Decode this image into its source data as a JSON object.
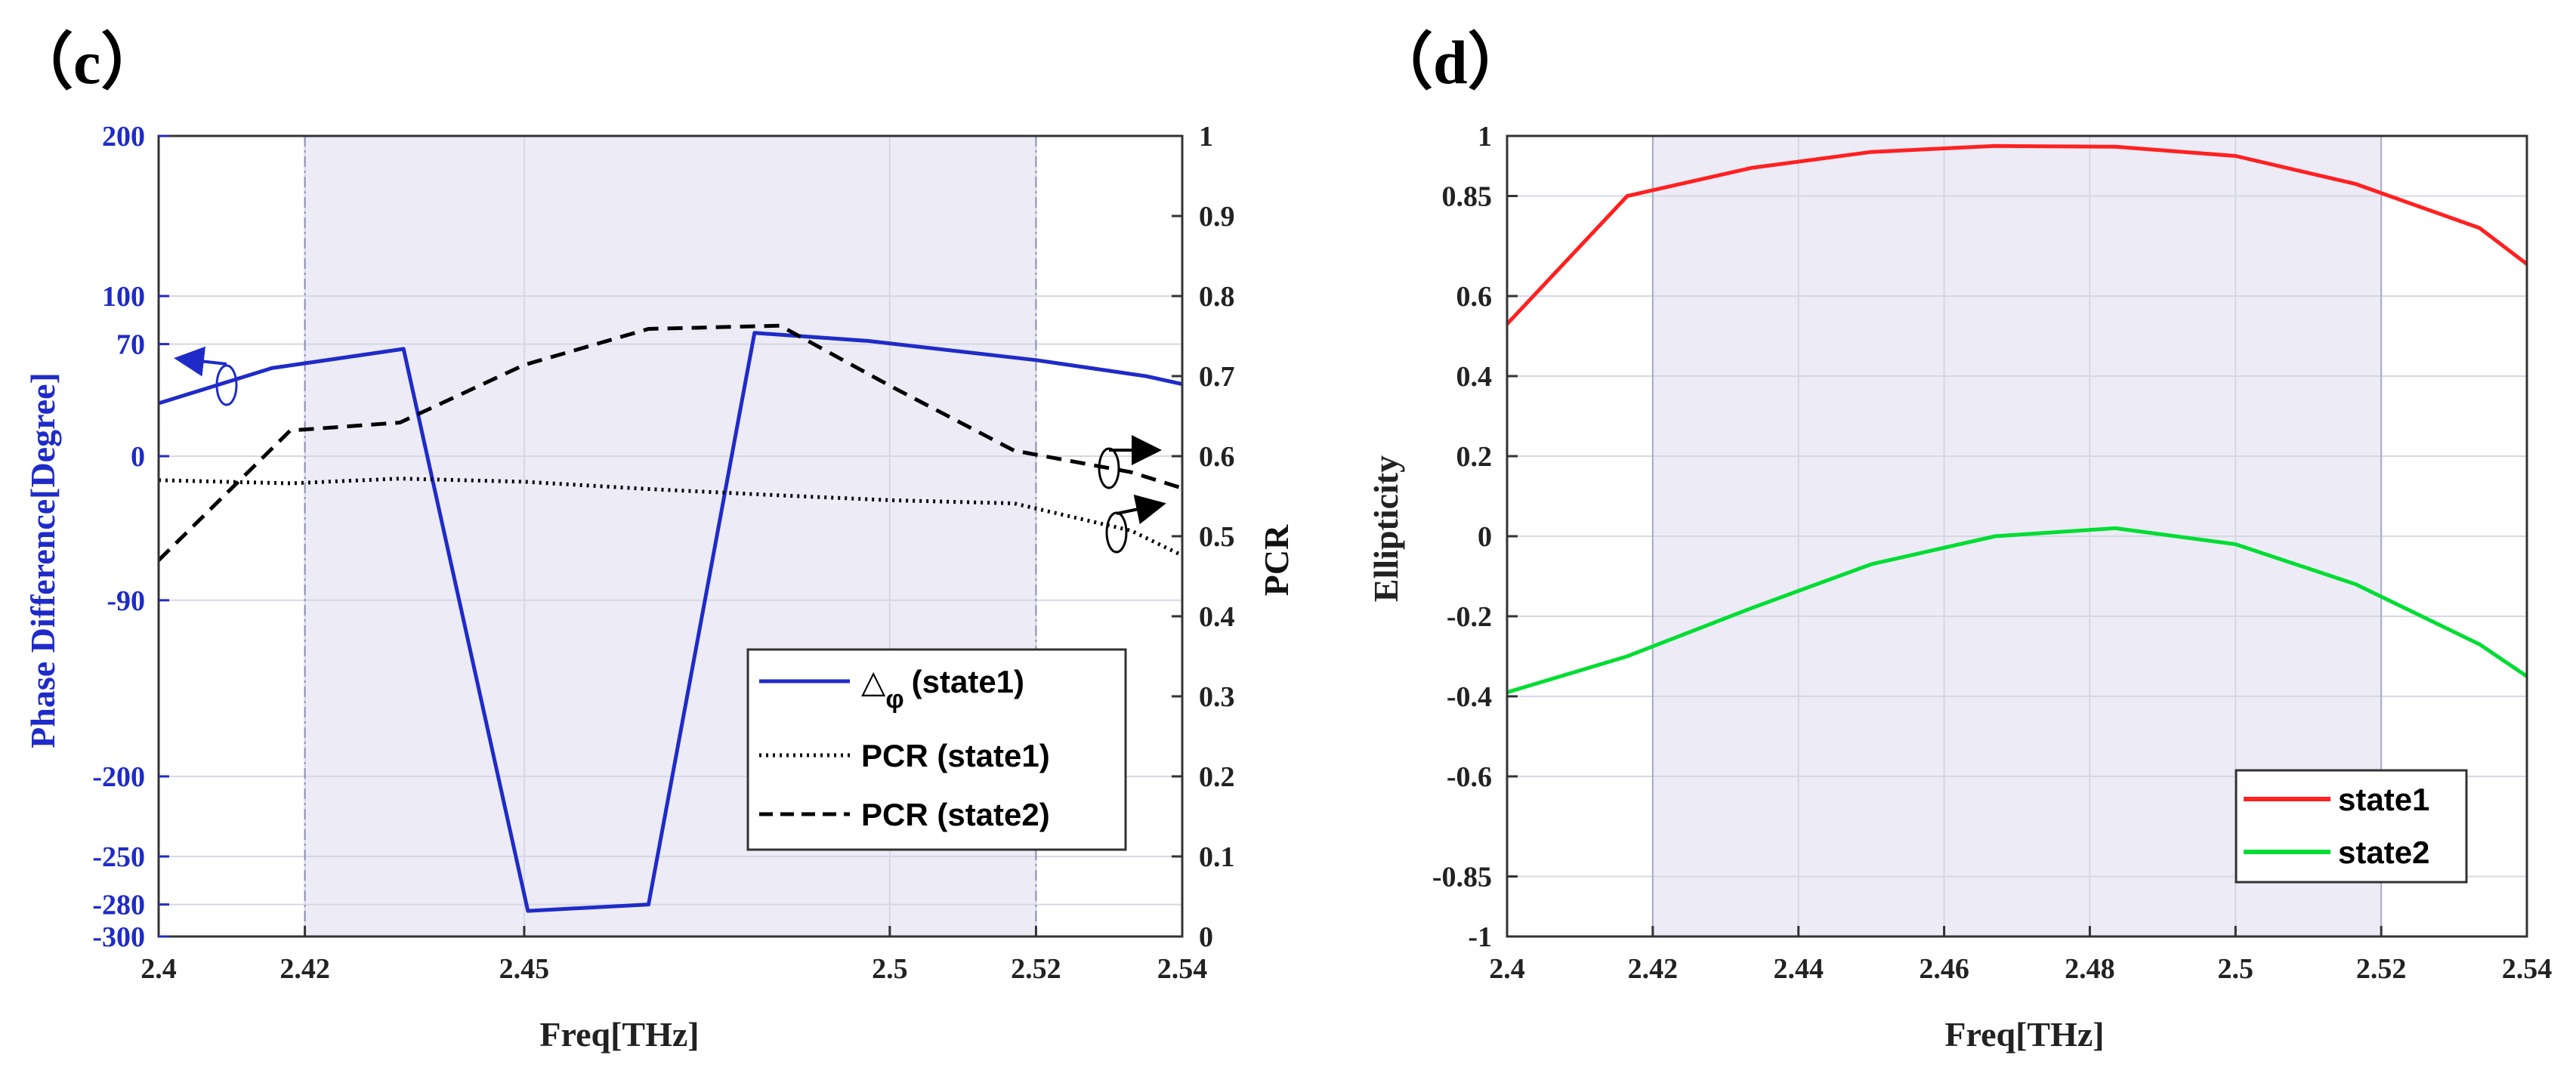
{
  "chart_data": [
    {
      "type": "line",
      "panel_label": "（c）",
      "xlabel": "Freq[THz]",
      "ylabel_left": "Phase Difference[Degree]",
      "ylabel_right": "PCR",
      "xlim": [
        2.4,
        2.54
      ],
      "ylim_left": [
        -300,
        200
      ],
      "ylim_right": [
        0,
        1
      ],
      "xticks": [
        "2.4",
        "2.42",
        "2.45",
        "2.5",
        "2.52",
        "2.54"
      ],
      "xtick_values": [
        2.4,
        2.42,
        2.45,
        2.5,
        2.52,
        2.54
      ],
      "yticks_left": [
        "200",
        "100",
        "70",
        "0",
        "-90",
        "-200",
        "-250",
        "-280",
        "-300"
      ],
      "ytick_values_left": [
        200,
        100,
        70,
        0,
        -90,
        -200,
        -250,
        -280,
        -300
      ],
      "yticks_right": [
        "1",
        "0.9",
        "0.8",
        "0.7",
        "0.6",
        "0.5",
        "0.4",
        "0.3",
        "0.2",
        "0.1",
        "0"
      ],
      "ytick_values_right": [
        1,
        0.9,
        0.8,
        0.7,
        0.6,
        0.5,
        0.4,
        0.3,
        0.2,
        0.1,
        0
      ],
      "shaded_range": [
        2.42,
        2.52
      ],
      "grid": true,
      "legend_position": "bottom-right",
      "series": [
        {
          "name": "(state1)",
          "legend_symbol": "△",
          "legend_subscript": "φ",
          "axis": "left",
          "color": "#1f2bc8",
          "dash": "solid",
          "x": [
            2.4,
            2.4155,
            2.4335,
            2.4505,
            2.467,
            2.4815,
            2.497,
            2.52,
            2.535,
            2.54
          ],
          "y": [
            33,
            55,
            67,
            -284,
            -280,
            77,
            72,
            60,
            50,
            45
          ]
        },
        {
          "name": "PCR (state1)",
          "axis": "right",
          "color": "#000000",
          "dash": "dotted",
          "x": [
            2.4,
            2.418,
            2.433,
            2.45,
            2.467,
            2.485,
            2.5,
            2.517,
            2.533,
            2.54
          ],
          "y": [
            0.57,
            0.566,
            0.572,
            0.568,
            0.559,
            0.551,
            0.545,
            0.541,
            0.507,
            0.476
          ]
        },
        {
          "name": "PCR (state2)",
          "axis": "right",
          "color": "#000000",
          "dash": "dashed",
          "x": [
            2.4,
            2.418,
            2.433,
            2.45,
            2.467,
            2.485,
            2.5,
            2.517,
            2.533,
            2.54
          ],
          "y": [
            0.47,
            0.632,
            0.642,
            0.714,
            0.759,
            0.763,
            0.688,
            0.607,
            0.58,
            0.56
          ]
        }
      ]
    },
    {
      "type": "line",
      "panel_label": "（d）",
      "xlabel": "Freq[THz]",
      "ylabel": "Ellipticity",
      "xlim": [
        2.4,
        2.54
      ],
      "ylim": [
        -1,
        1
      ],
      "xticks": [
        "2.4",
        "2.42",
        "2.44",
        "2.46",
        "2.48",
        "2.5",
        "2.52",
        "2.54"
      ],
      "xtick_values": [
        2.4,
        2.42,
        2.44,
        2.46,
        2.48,
        2.5,
        2.52,
        2.54
      ],
      "yticks": [
        "1",
        "0.85",
        "0.6",
        "0.4",
        "0.2",
        "0",
        "-0.2",
        "-0.4",
        "-0.6",
        "-0.85",
        "-1"
      ],
      "ytick_values": [
        1,
        0.85,
        0.6,
        0.4,
        0.2,
        0,
        -0.2,
        -0.4,
        -0.6,
        -0.85,
        -1
      ],
      "shaded_range": [
        2.42,
        2.52
      ],
      "grid": true,
      "legend_position": "bottom-right",
      "series": [
        {
          "name": "state1",
          "color": "#ff2020",
          "x": [
            2.4,
            2.4165,
            2.4335,
            2.45,
            2.467,
            2.4835,
            2.5,
            2.5165,
            2.5335,
            2.54
          ],
          "y": [
            0.53,
            0.85,
            0.92,
            0.96,
            0.975,
            0.973,
            0.95,
            0.88,
            0.77,
            0.68
          ]
        },
        {
          "name": "state2",
          "color": "#00dd33",
          "x": [
            2.4,
            2.4165,
            2.4335,
            2.45,
            2.467,
            2.4835,
            2.5,
            2.5165,
            2.5335,
            2.54
          ],
          "y": [
            -0.39,
            -0.3,
            -0.18,
            -0.07,
            0.0,
            0.02,
            -0.02,
            -0.12,
            -0.27,
            -0.35
          ]
        }
      ]
    }
  ]
}
